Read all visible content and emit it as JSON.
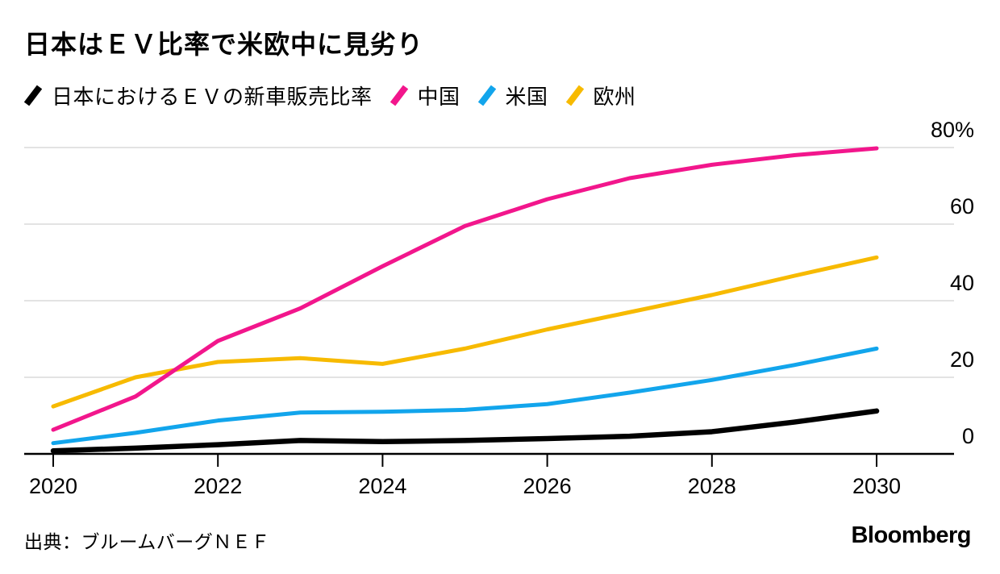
{
  "header": {
    "title": "日本はＥＶ比率で米欧中に見劣り"
  },
  "chart_data": {
    "type": "line",
    "title": "日本はＥＶ比率で米欧中に見劣り",
    "unit": "%",
    "x": [
      2020,
      2021,
      2022,
      2023,
      2024,
      2025,
      2026,
      2027,
      2028,
      2029,
      2030
    ],
    "series": [
      {
        "key": "japan",
        "name": "日本におけるＥＶの新車販売比率",
        "color": "#000000",
        "values": [
          0.8,
          1.5,
          2.4,
          3.5,
          3.2,
          3.5,
          4.0,
          4.6,
          5.8,
          8.3,
          11.2
        ]
      },
      {
        "key": "china",
        "name": "中国",
        "color": "#F2168C",
        "values": [
          6.3,
          15,
          29.5,
          38,
          49,
          59.5,
          66.5,
          72,
          75.5,
          78,
          79.8
        ]
      },
      {
        "key": "us",
        "name": "米国",
        "color": "#12A5EC",
        "values": [
          2.8,
          5.5,
          8.7,
          10.8,
          11,
          11.5,
          13,
          16,
          19.3,
          23.2,
          27.5
        ]
      },
      {
        "key": "europe",
        "name": "欧州",
        "color": "#F7BA00",
        "values": [
          12.4,
          20,
          24,
          25,
          23.5,
          27.5,
          32.5,
          37,
          41.5,
          46.5,
          51.3
        ]
      }
    ],
    "ylim": [
      0,
      80
    ],
    "y_ticks": [
      {
        "value": 80,
        "label": "80%"
      },
      {
        "value": 60,
        "label": "60"
      },
      {
        "value": 40,
        "label": "40"
      },
      {
        "value": 20,
        "label": "20"
      },
      {
        "value": 0,
        "label": "0"
      }
    ],
    "x_ticks": [
      {
        "value": 2020,
        "label": "2020"
      },
      {
        "value": 2022,
        "label": "2022"
      },
      {
        "value": 2024,
        "label": "2024"
      },
      {
        "value": 2026,
        "label": "2026"
      },
      {
        "value": 2028,
        "label": "2028"
      },
      {
        "value": 2030,
        "label": "2030"
      }
    ],
    "grid": true,
    "legend_position": "top",
    "colors": {
      "gridline": "#E3E3E3",
      "axis": "#000000"
    }
  },
  "footer": {
    "source": "出典：ブルームバーグＮＥＦ",
    "brand": "Bloomberg"
  }
}
